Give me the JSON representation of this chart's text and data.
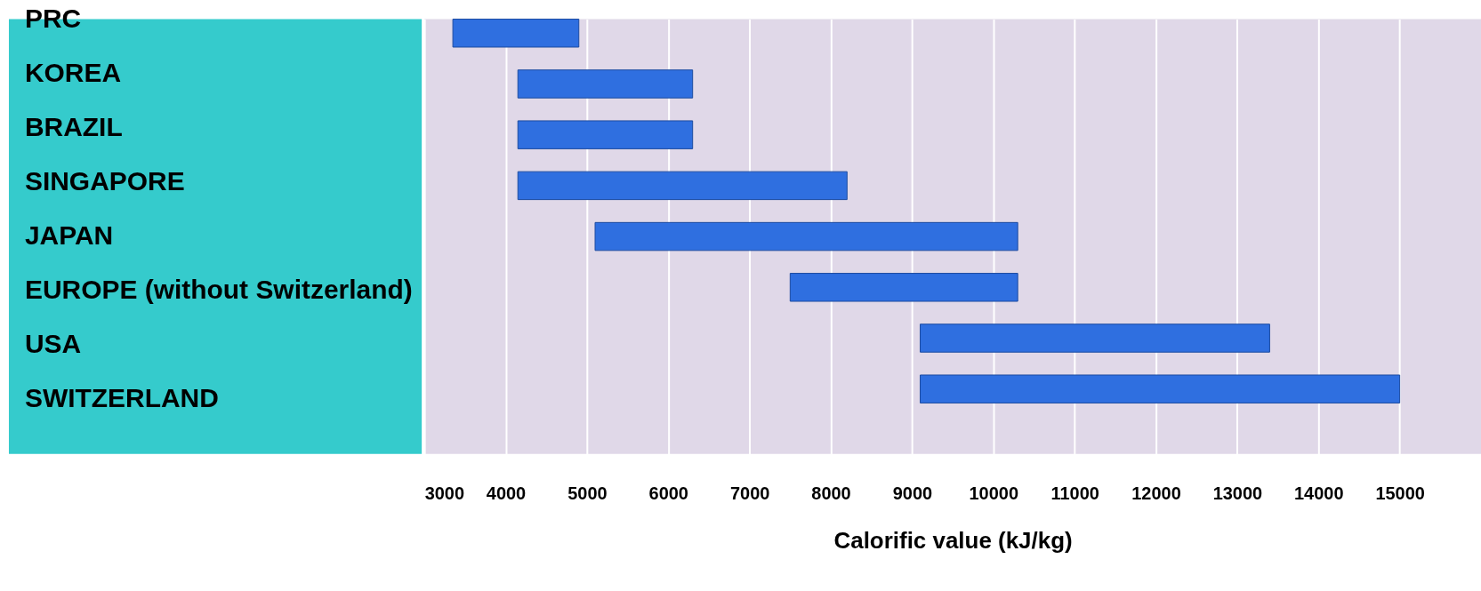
{
  "chart_data": {
    "type": "bar",
    "orientation": "horizontal",
    "xlabel": "Calorific value (kJ/kg)",
    "categories": [
      "PRC",
      "KOREA",
      "BRAZIL",
      "SINGAPORE",
      "JAPAN",
      "EUROPE (without Switzerland)",
      "USA",
      "SWITZERLAND"
    ],
    "base": [
      3350,
      4150,
      4150,
      4150,
      5100,
      7500,
      9100,
      9100
    ],
    "values": [
      1550,
      2150,
      2150,
      4050,
      5200,
      2800,
      4300,
      5900
    ],
    "color": "#2f6fe0",
    "xlim": [
      3000,
      16000
    ],
    "xticks": [
      3000,
      4000,
      5000,
      6000,
      7000,
      8000,
      9000,
      10000,
      11000,
      12000,
      13000,
      14000,
      15000
    ],
    "grid": "x"
  }
}
